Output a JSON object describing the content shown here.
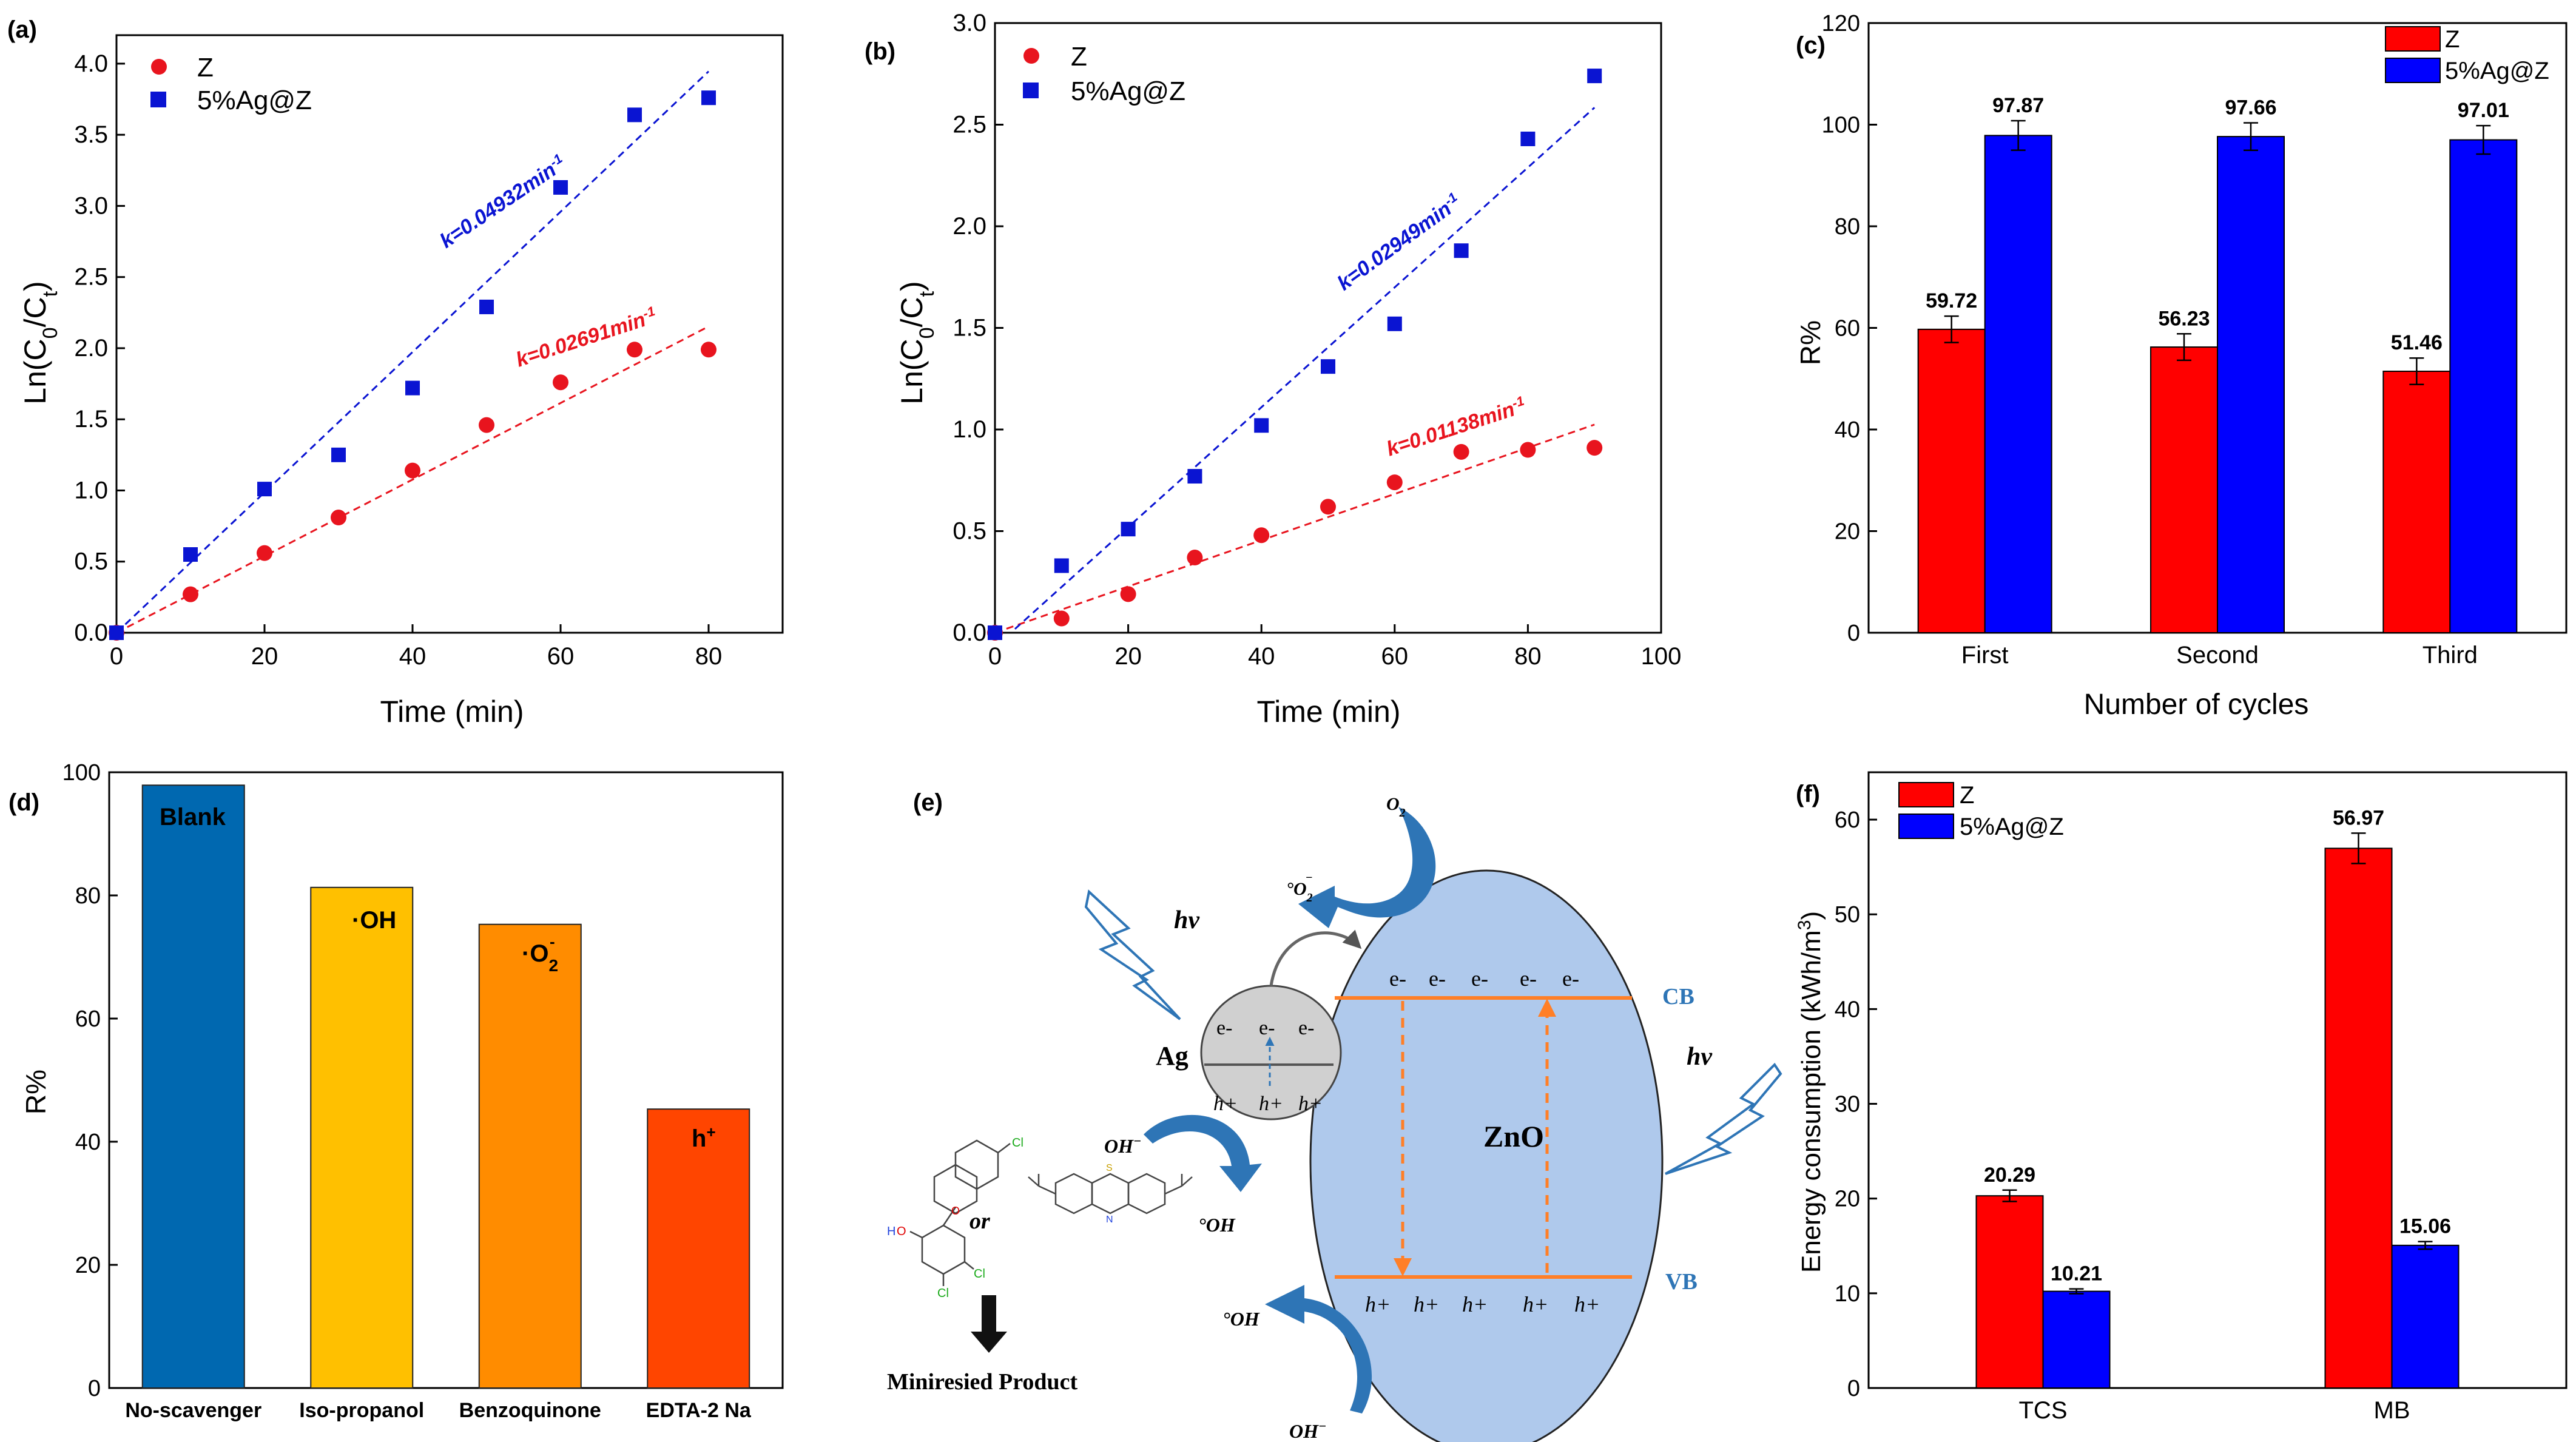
{
  "chart_data": [
    {
      "panel": "(a)",
      "type": "scatter",
      "xlabel": "Time (min)",
      "ylabel": "Ln(C0/Ct)",
      "ylabel_main": "Ln(C",
      "ylabel_sub0": "0",
      "ylabel_mid": "/C",
      "ylabel_subt": "t",
      "ylabel_end": ")",
      "xlim": [
        0,
        90
      ],
      "ylim": [
        0,
        4.2
      ],
      "xticks": [
        "0",
        "20",
        "40",
        "60",
        "80"
      ],
      "yticks": [
        "0.0",
        "0.5",
        "1.0",
        "1.5",
        "2.0",
        "2.5",
        "3.0",
        "3.5",
        "4.0"
      ],
      "legend_position": "top-left",
      "series": [
        {
          "name": "Z",
          "marker": "circle",
          "color": "#e8141e",
          "x": [
            0,
            10,
            20,
            30,
            40,
            50,
            60,
            70,
            80
          ],
          "y": [
            0.0,
            0.27,
            0.56,
            0.81,
            1.14,
            1.46,
            1.76,
            1.99,
            1.99
          ],
          "fit": {
            "x0": 0,
            "x1": 80,
            "slope": 0.02691
          },
          "k_label": "k=0.02691min",
          "k_sup": "-1"
        },
        {
          "name": "5%Ag@Z",
          "marker": "square",
          "color": "#0a14d2",
          "x": [
            0,
            10,
            20,
            30,
            40,
            50,
            60,
            70,
            80
          ],
          "y": [
            0.0,
            0.55,
            1.01,
            1.25,
            1.72,
            2.29,
            3.13,
            3.64,
            3.76
          ],
          "fit": {
            "x0": 0,
            "x1": 80,
            "slope": 0.04932
          },
          "k_label": "k=0.04932min",
          "k_sup": "-1"
        }
      ]
    },
    {
      "panel": "(b)",
      "type": "scatter",
      "xlabel": "Time (min)",
      "ylabel_main": "Ln(C",
      "ylabel_sub0": "0",
      "ylabel_mid": "/C",
      "ylabel_subt": "t",
      "ylabel_end": ")",
      "xlim": [
        0,
        100
      ],
      "ylim": [
        0,
        3.0
      ],
      "xticks": [
        "0",
        "20",
        "40",
        "60",
        "80",
        "100"
      ],
      "yticks": [
        "0.0",
        "0.5",
        "1.0",
        "1.5",
        "2.0",
        "2.5",
        "3.0"
      ],
      "legend_position": "top-left",
      "series": [
        {
          "name": "Z",
          "marker": "circle",
          "color": "#e8141e",
          "x": [
            0,
            10,
            20,
            30,
            40,
            50,
            60,
            70,
            80,
            90
          ],
          "y": [
            0.0,
            0.07,
            0.19,
            0.37,
            0.48,
            0.62,
            0.74,
            0.89,
            0.9,
            0.91
          ],
          "fit": {
            "x0": 0,
            "x1": 90,
            "slope": 0.01138,
            "intercept": 0.0
          },
          "k_label": "k=0.01138min",
          "k_sup": "-1"
        },
        {
          "name": "5%Ag@Z",
          "marker": "square",
          "color": "#0a14d2",
          "x": [
            0,
            10,
            20,
            30,
            40,
            50,
            60,
            70,
            80,
            90
          ],
          "y": [
            0.0,
            0.33,
            0.51,
            0.77,
            1.02,
            1.31,
            1.52,
            1.88,
            2.43,
            2.74
          ],
          "fit": {
            "x0": 3,
            "x1": 90,
            "slope": 0.02949,
            "intercept": -0.07
          },
          "k_label": "k=0.02949min",
          "k_sup": "-1"
        }
      ]
    },
    {
      "panel": "(c)",
      "type": "bar",
      "xlabel": "Number of cycles",
      "ylabel": "R%",
      "categories": [
        "First",
        "Second",
        "Third"
      ],
      "ylim": [
        0,
        120
      ],
      "yticks": [
        "0",
        "20",
        "40",
        "60",
        "80",
        "100",
        "120"
      ],
      "legend_position": "top-right",
      "series": [
        {
          "name": "Z",
          "color": "#ff0000",
          "values": [
            59.72,
            56.23,
            51.46
          ],
          "errors": [
            2.6,
            2.6,
            2.6
          ],
          "labels": [
            "59.72",
            "56.23",
            "51.46"
          ]
        },
        {
          "name": "5%Ag@Z",
          "color": "#0000ff",
          "values": [
            97.87,
            97.66,
            97.01
          ],
          "errors": [
            2.9,
            2.7,
            2.8
          ],
          "labels": [
            "97.87",
            "97.66",
            "97.01"
          ]
        }
      ]
    },
    {
      "panel": "(d)",
      "type": "bar",
      "ylabel": "R%",
      "categories": [
        "No-scavenger",
        "Iso-propanol",
        "Benzoquinone",
        "EDTA-2 Na"
      ],
      "values": [
        97.9,
        81.3,
        75.3,
        45.3
      ],
      "colors": [
        "#0068b0",
        "#ffc000",
        "#ff8c00",
        "#ff4500"
      ],
      "ylim": [
        0,
        100
      ],
      "yticks": [
        "0",
        "20",
        "40",
        "60",
        "80",
        "100"
      ],
      "annotations": [
        "Blank",
        "·OH",
        "·O",
        "h"
      ],
      "annotation_sub": [
        "",
        "",
        "2",
        ""
      ],
      "annotation_sup": [
        "",
        "",
        "-",
        "+"
      ]
    },
    {
      "panel": "(f)",
      "type": "bar",
      "ylabel": "Energy consumption (kWh/m",
      "ylabel_sup": "3",
      "ylabel_end": ")",
      "categories": [
        "TCS",
        "MB"
      ],
      "ylim": [
        0,
        65
      ],
      "yticks": [
        "0",
        "10",
        "20",
        "30",
        "40",
        "50",
        "60"
      ],
      "legend_position": "top-left",
      "series": [
        {
          "name": "Z",
          "color": "#ff0000",
          "values": [
            20.29,
            56.97
          ],
          "errors": [
            0.6,
            1.6
          ],
          "labels": [
            "20.29",
            "56.97"
          ]
        },
        {
          "name": "5%Ag@Z",
          "color": "#0000ff",
          "values": [
            10.21,
            15.06
          ],
          "errors": [
            0.25,
            0.4
          ],
          "labels": [
            "10.21",
            "15.06"
          ]
        }
      ]
    }
  ],
  "diagram": {
    "panel": "(e)",
    "o2": "O",
    "o2_sub": "2",
    "o2_radical": "°O",
    "o2_radical_sub": "2",
    "o2_radical_sup": "−",
    "hv": "hν",
    "ag": "Ag",
    "zno": "ZnO",
    "cb": "CB",
    "vb": "VB",
    "electron": "e-",
    "hole": "h+",
    "oh_minus": "OH",
    "oh_minus_sup": "−",
    "oh_radical": "°OH",
    "or_text": "or",
    "product": "Miniresied Product"
  }
}
